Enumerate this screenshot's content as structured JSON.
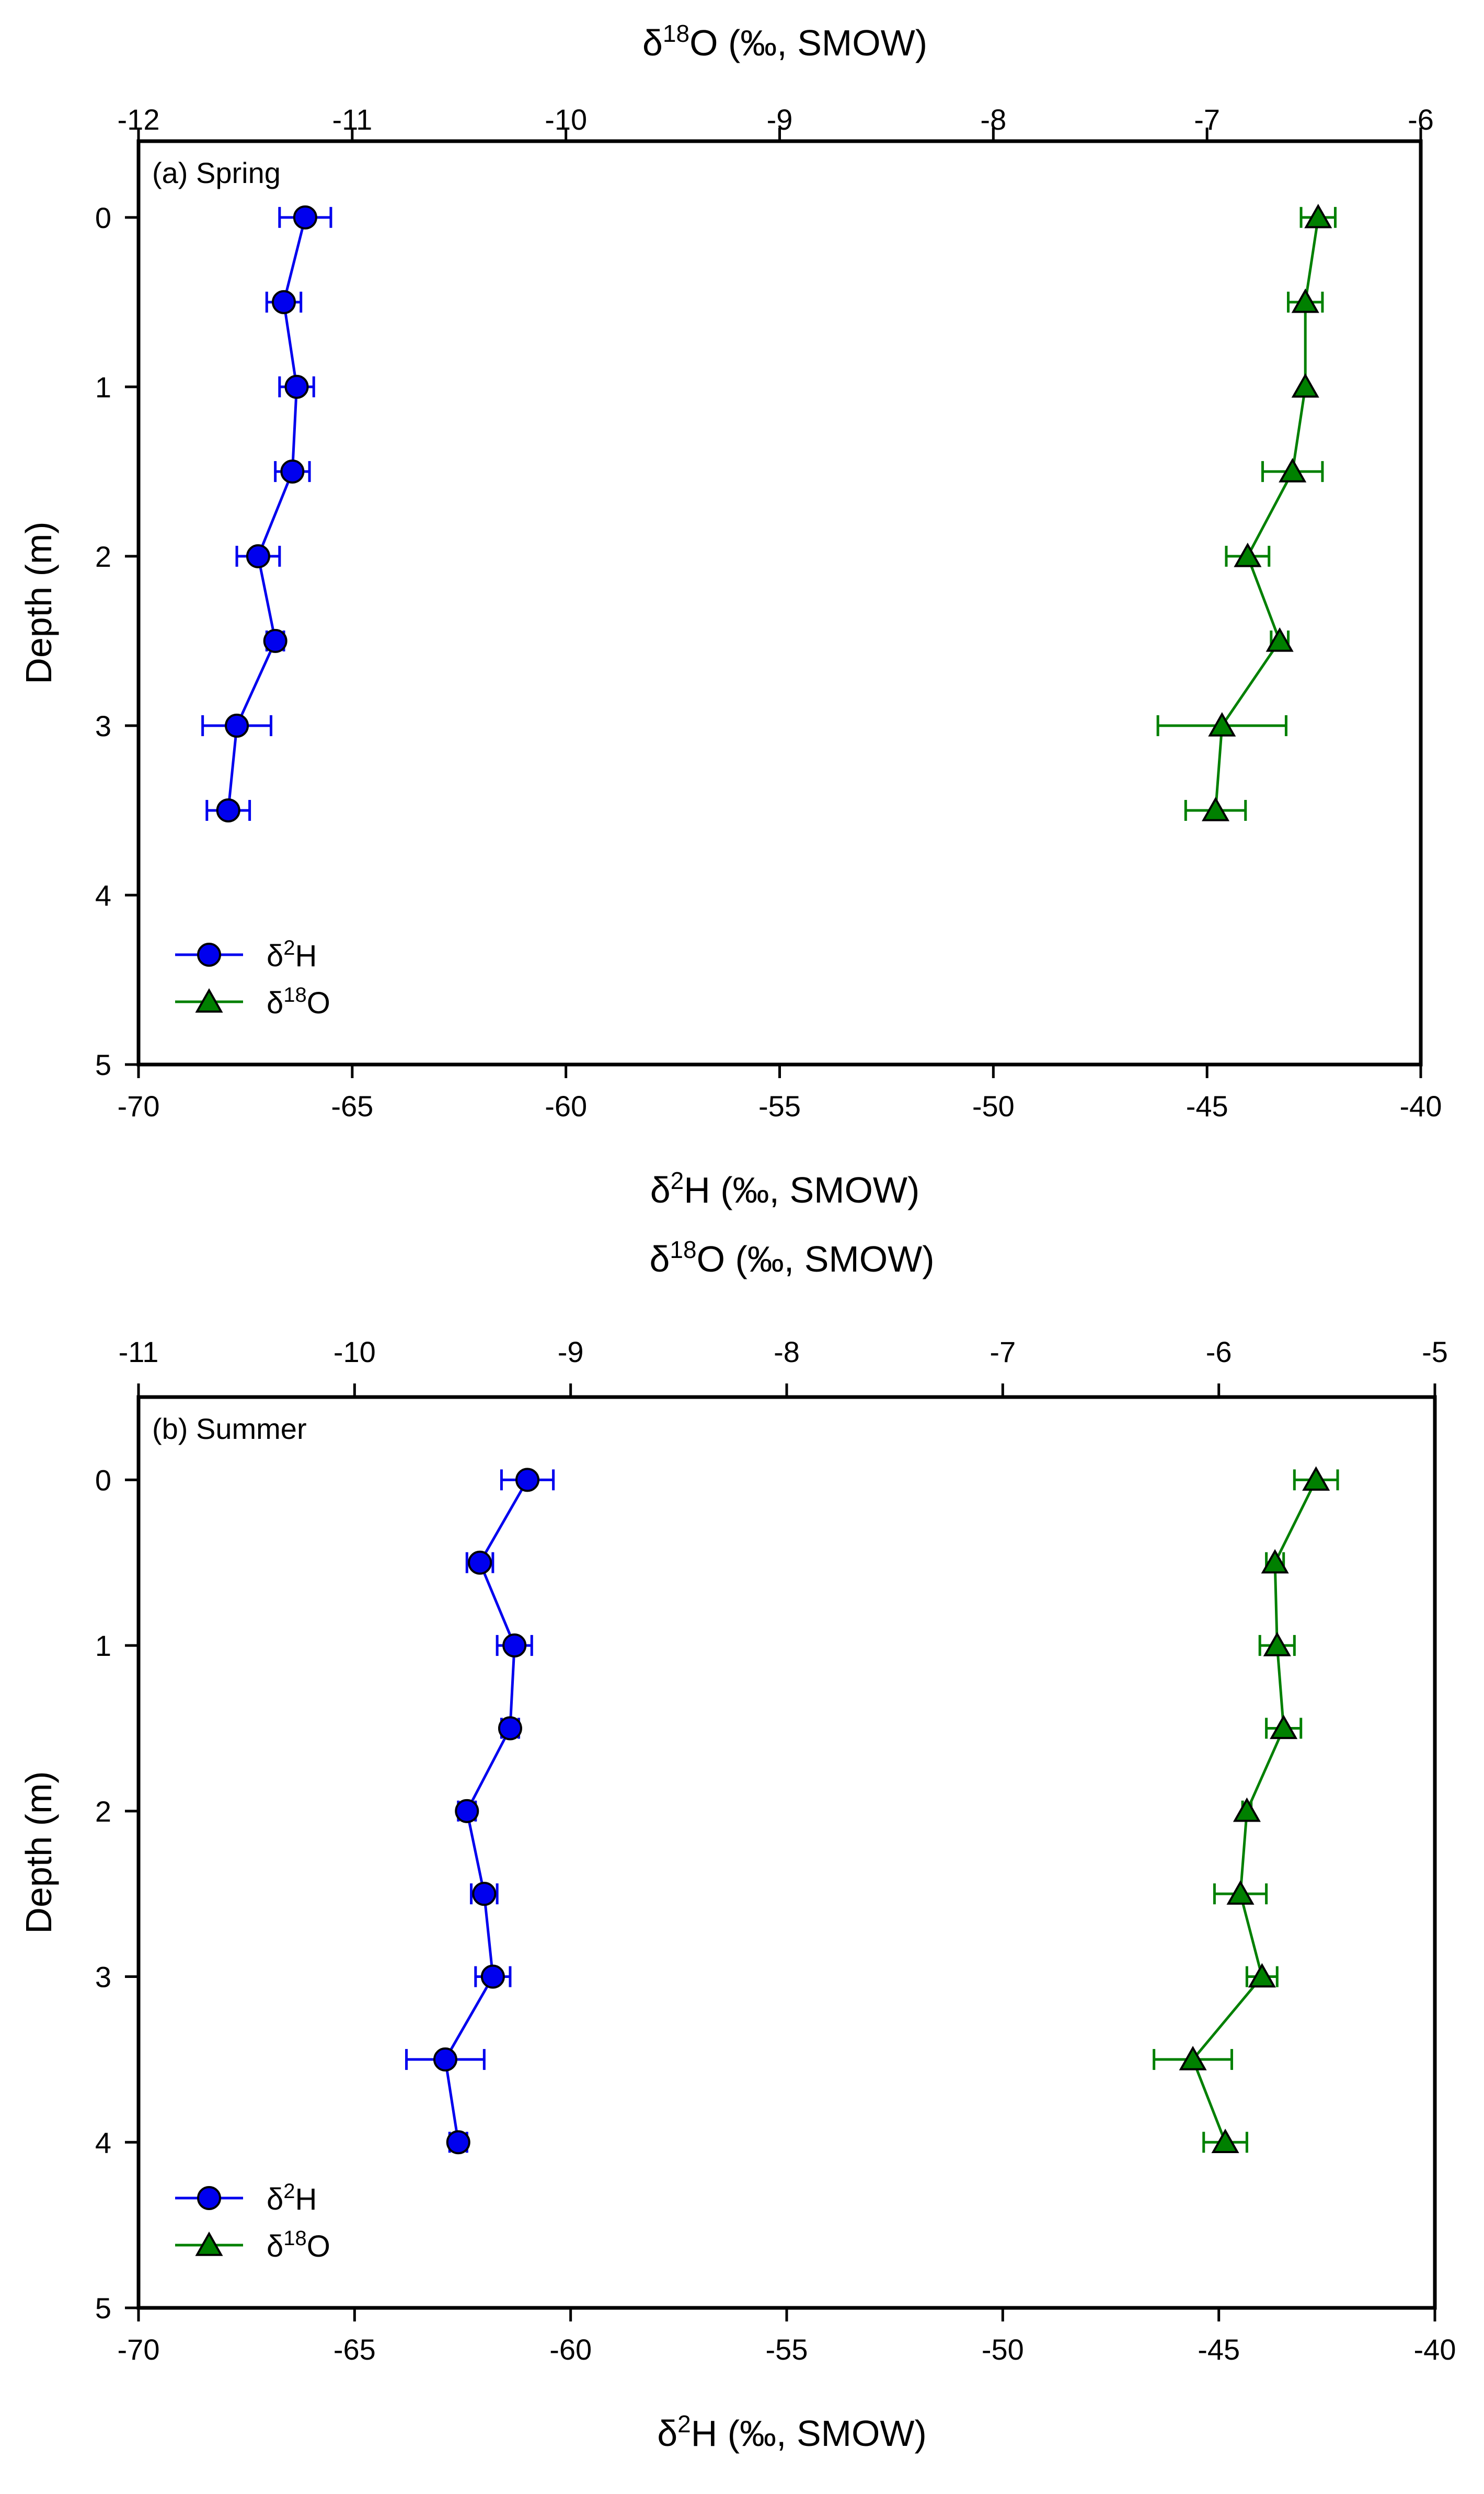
{
  "chart_data": [
    {
      "type": "line",
      "panel_label": "(a) Spring",
      "top_axis": {
        "title_prefix": "δ",
        "title_sup": "18",
        "title_suffix": "O (‰, SMOW)",
        "range": [
          -12,
          -6
        ],
        "ticks": [
          -12,
          -11,
          -10,
          -9,
          -8,
          -7,
          -6
        ],
        "tick_labels": [
          "-12",
          "-11",
          "-10",
          "-9",
          "-8",
          "-7",
          "-6"
        ]
      },
      "bottom_axis": {
        "title_prefix": "δ",
        "title_sup": "2",
        "title_suffix": "H (‰, SMOW)",
        "range": [
          -70,
          -40
        ],
        "ticks": [
          -70,
          -65,
          -60,
          -55,
          -50,
          -45,
          -40
        ],
        "tick_labels": [
          "-70",
          "-65",
          "-60",
          "-55",
          "-50",
          "-45",
          "-40"
        ]
      },
      "left_axis": {
        "title": "Depth (m)",
        "range": [
          5,
          -0.45
        ],
        "ticks": [
          0,
          1,
          2,
          3,
          4,
          5
        ],
        "tick_labels": [
          "0",
          "1",
          "2",
          "3",
          "4",
          "5"
        ]
      },
      "legend": {
        "position": "bottom-left",
        "entries": [
          {
            "prefix": "δ",
            "sup": "2",
            "suffix": "H"
          },
          {
            "prefix": "δ",
            "sup": "18",
            "suffix": "O"
          }
        ]
      },
      "series": [
        {
          "name": "δ2H",
          "axis": "bottom",
          "marker": "circle",
          "color": "#0000ee",
          "depth": [
            0,
            0.5,
            1,
            1.5,
            2,
            2.5,
            3,
            3.5
          ],
          "values": [
            -66.1,
            -66.6,
            -66.3,
            -66.4,
            -67.2,
            -66.8,
            -67.7,
            -67.9
          ],
          "errors": [
            0.6,
            0.4,
            0.4,
            0.4,
            0.5,
            0.2,
            0.8,
            0.5
          ]
        },
        {
          "name": "δ18O",
          "axis": "top",
          "marker": "triangle",
          "color": "#008000",
          "depth": [
            0,
            0.5,
            1,
            1.5,
            2,
            2.5,
            3,
            3.5
          ],
          "values": [
            -6.48,
            -6.54,
            -6.54,
            -6.6,
            -6.81,
            -6.66,
            -6.93,
            -6.96
          ],
          "errors": [
            0.08,
            0.08,
            0.0,
            0.14,
            0.1,
            0.04,
            0.3,
            0.14
          ]
        }
      ]
    },
    {
      "type": "line",
      "panel_label": "(b) Summer",
      "top_axis": {
        "title_prefix": "δ",
        "title_sup": "18",
        "title_suffix": "O (‰, SMOW)",
        "range": [
          -11,
          -5
        ],
        "ticks": [
          -11,
          -10,
          -9,
          -8,
          -7,
          -6,
          -5
        ],
        "tick_labels": [
          "-11",
          "-10",
          "-9",
          "-8",
          "-7",
          "-6",
          "-5"
        ]
      },
      "bottom_axis": {
        "title_prefix": "δ",
        "title_sup": "2",
        "title_suffix": "H (‰, SMOW)",
        "range": [
          -70,
          -40
        ],
        "ticks": [
          -70,
          -65,
          -60,
          -55,
          -50,
          -45,
          -40
        ],
        "tick_labels": [
          "-70",
          "-65",
          "-60",
          "-55",
          "-50",
          "-45",
          "-40"
        ]
      },
      "left_axis": {
        "title": "Depth (m)",
        "range": [
          5,
          -0.5
        ],
        "ticks": [
          0,
          1,
          2,
          3,
          4,
          5
        ],
        "tick_labels": [
          "0",
          "1",
          "2",
          "3",
          "4",
          "5"
        ]
      },
      "legend": {
        "position": "bottom-left",
        "entries": [
          {
            "prefix": "δ",
            "sup": "2",
            "suffix": "H"
          },
          {
            "prefix": "δ",
            "sup": "18",
            "suffix": "O"
          }
        ]
      },
      "series": [
        {
          "name": "δ2H",
          "axis": "bottom",
          "marker": "circle",
          "color": "#0000ee",
          "depth": [
            0,
            0.5,
            1,
            1.5,
            2,
            2.5,
            3,
            3.5,
            4
          ],
          "values": [
            -61.0,
            -62.1,
            -61.3,
            -61.4,
            -62.4,
            -62.0,
            -61.8,
            -62.9,
            -62.6
          ],
          "errors": [
            0.6,
            0.3,
            0.4,
            0.2,
            0.2,
            0.3,
            0.4,
            0.9,
            0.2
          ]
        },
        {
          "name": "δ18O",
          "axis": "top",
          "marker": "triangle",
          "color": "#008000",
          "depth": [
            0,
            0.5,
            1,
            1.5,
            2,
            2.5,
            3,
            3.5,
            4
          ],
          "values": [
            -5.55,
            -5.74,
            -5.73,
            -5.7,
            -5.87,
            -5.9,
            -5.8,
            -6.12,
            -5.97
          ],
          "errors": [
            0.1,
            0.04,
            0.08,
            0.08,
            0.02,
            0.12,
            0.07,
            0.18,
            0.1
          ]
        }
      ]
    }
  ]
}
